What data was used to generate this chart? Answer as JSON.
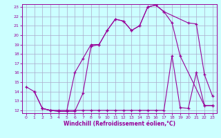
{
  "bg_color": "#ccffff",
  "line_color": "#990099",
  "grid_color": "#aaaacc",
  "xlabel": "Windchill (Refroidissement éolien,°C)",
  "xlim": [
    -0.5,
    23.5
  ],
  "ylim": [
    11.7,
    23.3
  ],
  "yticks": [
    12,
    13,
    14,
    15,
    16,
    17,
    18,
    19,
    20,
    21,
    22,
    23
  ],
  "xticks": [
    0,
    1,
    2,
    3,
    4,
    5,
    6,
    7,
    8,
    9,
    10,
    11,
    12,
    13,
    14,
    15,
    16,
    17,
    18,
    19,
    20,
    21,
    22,
    23
  ],
  "line1_x": [
    1,
    2,
    3,
    4,
    5,
    6,
    7,
    8,
    9,
    10,
    11,
    12,
    13,
    14,
    15,
    16,
    17,
    20,
    21,
    22,
    23
  ],
  "line1_y": [
    14,
    12.2,
    12,
    11.9,
    11.9,
    16.0,
    17.5,
    19.0,
    19.0,
    20.5,
    21.7,
    21.5,
    20.5,
    21.0,
    23.0,
    23.2,
    22.5,
    21.3,
    21.2,
    15.8,
    13.5
  ],
  "line2_x": [
    0,
    1,
    2,
    3,
    4,
    5,
    6,
    7,
    8,
    9,
    10,
    11,
    12,
    13,
    14,
    15,
    16,
    17,
    18,
    19,
    22,
    23
  ],
  "line2_y": [
    14.5,
    14.0,
    12.2,
    12.0,
    11.9,
    11.9,
    11.9,
    13.8,
    18.8,
    19.0,
    20.5,
    21.7,
    21.5,
    20.5,
    21.0,
    23.0,
    23.2,
    22.5,
    21.3,
    17.8,
    12.5,
    12.5
  ],
  "line3_x": [
    2,
    3,
    4,
    5,
    6,
    7,
    8,
    9,
    10,
    11,
    12,
    13,
    14,
    15,
    16,
    17,
    18,
    19,
    20,
    21,
    22,
    23
  ],
  "line3_y": [
    12.2,
    12.0,
    12.0,
    12.0,
    12.0,
    12.0,
    12.0,
    12.0,
    12.0,
    12.0,
    12.0,
    12.0,
    12.0,
    12.0,
    12.0,
    12.0,
    17.8,
    12.3,
    12.2,
    16.0,
    12.5,
    12.5
  ]
}
